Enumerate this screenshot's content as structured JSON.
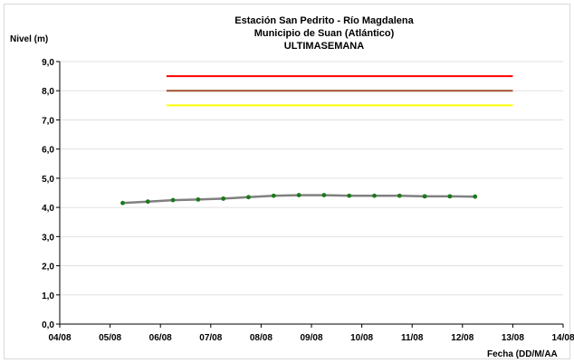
{
  "chart_data": {
    "type": "line",
    "title": [
      "Estación San Pedrito - Río Magdalena",
      "Municipio de Suan (Atlántico)",
      "ULTIMASEMANA"
    ],
    "ylabel": "Nivel (m)",
    "xlabel": "Fecha (DD/M/AA",
    "ylim": [
      0,
      9
    ],
    "y_ticks": [
      "0,0",
      "1,0",
      "2,0",
      "3,0",
      "4,0",
      "5,0",
      "6,0",
      "7,0",
      "8,0",
      "9,0"
    ],
    "x_ticks": [
      "04/08",
      "05/08",
      "06/08",
      "07/08",
      "08/08",
      "09/08",
      "10/08",
      "11/08",
      "12/08",
      "13/08",
      "14/08"
    ],
    "xlim_day": [
      4,
      14
    ],
    "grid": "horizontal",
    "series": [
      {
        "color": "#808080",
        "marker_color": "#1a7a1a",
        "x_day": [
          5.25,
          5.75,
          6.25,
          6.75,
          7.25,
          7.75,
          8.25,
          8.75,
          9.25,
          9.75,
          10.25,
          10.75,
          11.25,
          11.75,
          12.25
        ],
        "values": [
          4.15,
          4.2,
          4.25,
          4.27,
          4.3,
          4.35,
          4.4,
          4.42,
          4.42,
          4.4,
          4.4,
          4.4,
          4.38,
          4.38,
          4.37
        ]
      }
    ],
    "thresholds": [
      {
        "value": 8.5,
        "color": "#ff0000",
        "x_start_day": 6.12,
        "x_end_day": 13.0
      },
      {
        "value": 8.0,
        "color": "#a0522d",
        "x_start_day": 6.12,
        "x_end_day": 13.0
      },
      {
        "value": 7.5,
        "color": "#ffff00",
        "x_start_day": 6.12,
        "x_end_day": 13.0
      }
    ]
  }
}
